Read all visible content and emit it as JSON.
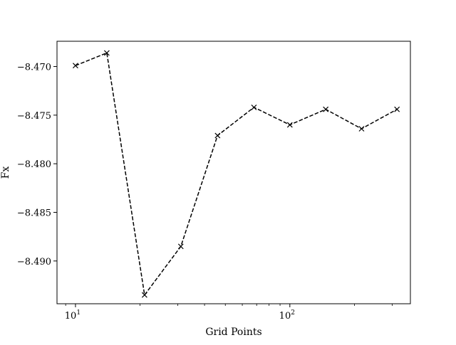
{
  "chart_data": {
    "type": "line",
    "title": "",
    "xlabel": "Grid Points",
    "ylabel": "Fx",
    "xscale": "log",
    "xlim": [
      8.2,
      365
    ],
    "ylim": [
      -8.4944,
      -8.4674
    ],
    "x_major_ticks": [
      {
        "value": 10,
        "base": "10",
        "exp": "1"
      },
      {
        "value": 100,
        "base": "10",
        "exp": "2"
      }
    ],
    "x_minor_ticks": [
      9,
      20,
      30,
      40,
      50,
      60,
      70,
      80,
      90,
      200,
      300
    ],
    "y_ticks": [
      {
        "value": -8.47,
        "label": "−8.470"
      },
      {
        "value": -8.475,
        "label": "−8.475"
      },
      {
        "value": -8.48,
        "label": "−8.480"
      },
      {
        "value": -8.485,
        "label": "−8.485"
      },
      {
        "value": -8.49,
        "label": "−8.490"
      }
    ],
    "grid": false,
    "legend": "none",
    "series": [
      {
        "color": "#000000",
        "line_style": "dashed",
        "marker": "x",
        "x": [
          10,
          14,
          21,
          31,
          46,
          68,
          100,
          147,
          216,
          316
        ],
        "y": [
          -8.4699,
          -8.4686,
          -8.4935,
          -8.4885,
          -8.4771,
          -8.4742,
          -8.476,
          -8.4744,
          -8.4764,
          -8.4744
        ]
      }
    ]
  }
}
